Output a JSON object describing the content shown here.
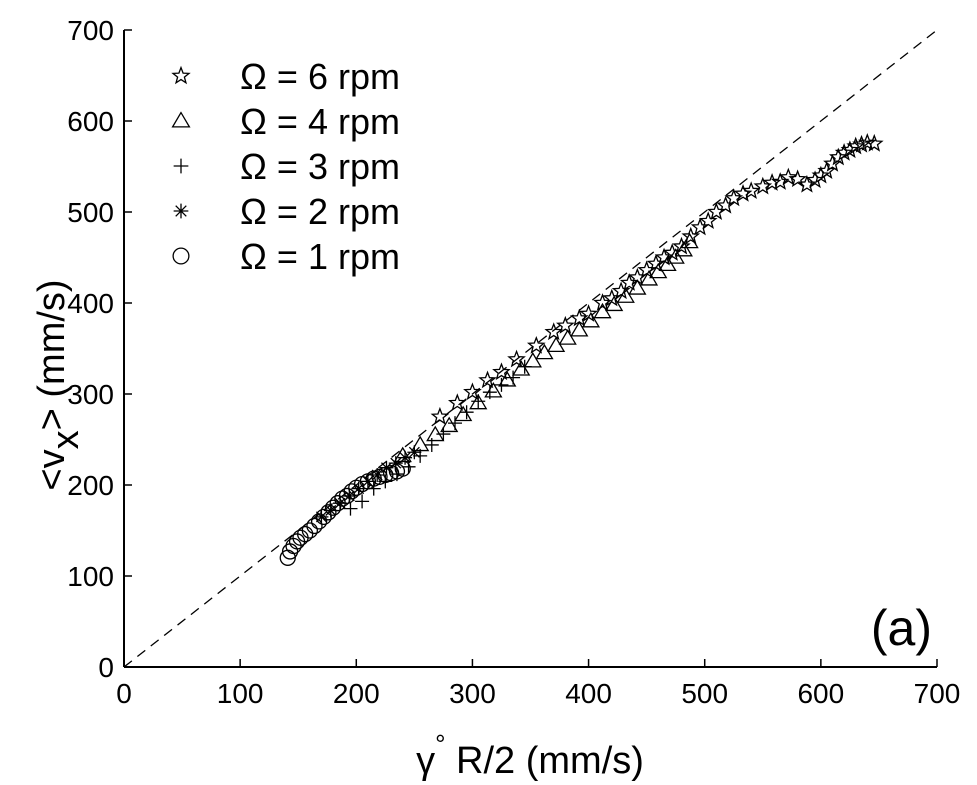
{
  "chart_data": {
    "type": "scatter",
    "panel_label": "(a)",
    "xlabel": {
      "symbol": "γ",
      "sup": "°",
      "rest": " R/2 (mm/s)"
    },
    "ylabel": {
      "open": "<v",
      "sub": "x",
      "close": "> (mm/s)"
    },
    "xlim": [
      0,
      700
    ],
    "ylim": [
      0,
      700
    ],
    "xticks": [
      "0",
      "100",
      "200",
      "300",
      "400",
      "500",
      "600",
      "700"
    ],
    "yticks": [
      "0",
      "100",
      "200",
      "300",
      "400",
      "500",
      "600",
      "700"
    ],
    "reference_line": {
      "style": "dashed",
      "slope": 1,
      "intercept": 0
    },
    "legend_position": "top-left",
    "series": [
      {
        "name": "Ω = 6 rpm",
        "marker": "star",
        "x": [
          272,
          287,
          300,
          313,
          325,
          338,
          355,
          370,
          380,
          392,
          400,
          412,
          420,
          428,
          435,
          442,
          450,
          458,
          465,
          472,
          480,
          488,
          496,
          503,
          510,
          518,
          525,
          533,
          540,
          550,
          558,
          565,
          572,
          580,
          588,
          595,
          600,
          605,
          610,
          615,
          620,
          625,
          630,
          635,
          640,
          646
        ],
        "y": [
          275,
          290,
          302,
          315,
          324,
          338,
          353,
          368,
          375,
          383,
          388,
          400,
          405,
          413,
          422,
          428,
          436,
          443,
          450,
          455,
          462,
          473,
          483,
          490,
          500,
          507,
          515,
          520,
          523,
          528,
          532,
          533,
          538,
          536,
          530,
          535,
          540,
          545,
          553,
          560,
          565,
          568,
          572,
          574,
          576,
          575
        ]
      },
      {
        "name": "Ω = 4 rpm",
        "marker": "triangle",
        "x": [
          240,
          255,
          268,
          280,
          292,
          305,
          318,
          330,
          342,
          352,
          362,
          372,
          382,
          392,
          402,
          412,
          422,
          432,
          442,
          452,
          460,
          468,
          475,
          482,
          487
        ],
        "y": [
          232,
          244,
          255,
          265,
          277,
          290,
          303,
          315,
          327,
          336,
          345,
          353,
          361,
          370,
          380,
          390,
          398,
          407,
          416,
          426,
          434,
          442,
          450,
          458,
          467
        ]
      },
      {
        "name": "Ω = 3 rpm",
        "marker": "plus",
        "x": [
          195,
          205,
          215,
          225,
          235,
          245,
          255,
          265,
          275,
          285,
          295,
          305,
          315,
          325,
          335,
          345
        ],
        "y": [
          174,
          182,
          196,
          204,
          212,
          220,
          232,
          244,
          256,
          268,
          280,
          292,
          302,
          310,
          318,
          330
        ]
      },
      {
        "name": "Ω = 2 rpm",
        "marker": "asterisk",
        "x": [
          170,
          178,
          186,
          194,
          202,
          210,
          218,
          226,
          234,
          242,
          250
        ],
        "y": [
          165,
          172,
          180,
          188,
          196,
          204,
          211,
          219,
          224,
          230,
          236
        ]
      },
      {
        "name": "Ω = 1 rpm",
        "marker": "circle",
        "x": [
          141,
          143,
          146,
          149,
          152,
          156,
          160,
          164,
          168,
          172,
          176,
          180,
          184,
          188,
          192,
          196,
          200,
          205,
          210,
          215,
          220,
          225,
          230,
          235,
          240
        ],
        "y": [
          120,
          127,
          133,
          138,
          142,
          146,
          150,
          155,
          160,
          165,
          170,
          175,
          180,
          185,
          188,
          193,
          197,
          201,
          204,
          207,
          209,
          211,
          213,
          215,
          218
        ]
      }
    ]
  }
}
